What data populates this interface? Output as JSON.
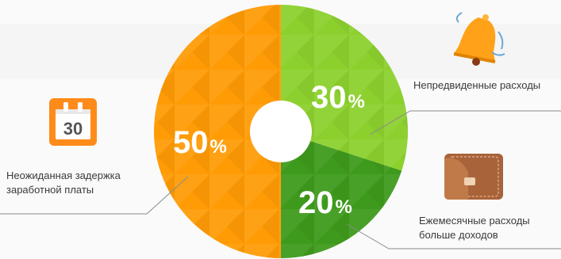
{
  "chart_data": {
    "type": "pie",
    "title": "",
    "slices": [
      {
        "label": "Непредвиденные расходы",
        "value": 30,
        "display": "30%",
        "color": "#8cd02e"
      },
      {
        "label": "Ежемесячные расходы больше доходов",
        "value": 20,
        "display": "20%",
        "color": "#3e9a1c"
      },
      {
        "label": "Неожиданная задержка заработной платы",
        "value": 50,
        "display": "50%",
        "color": "#ff9b05"
      }
    ]
  },
  "labels": {
    "unexpected_expenses": "Непредвиденные расходы",
    "monthly_line1": "Ежемесячные расходы",
    "monthly_line2": "больше доходов",
    "delay_line1": "Неожиданная задержка",
    "delay_line2": "заработной платы"
  },
  "calendar_icon": {
    "number": "30"
  },
  "icons": [
    "calendar-icon",
    "bell-icon",
    "wallet-icon"
  ]
}
